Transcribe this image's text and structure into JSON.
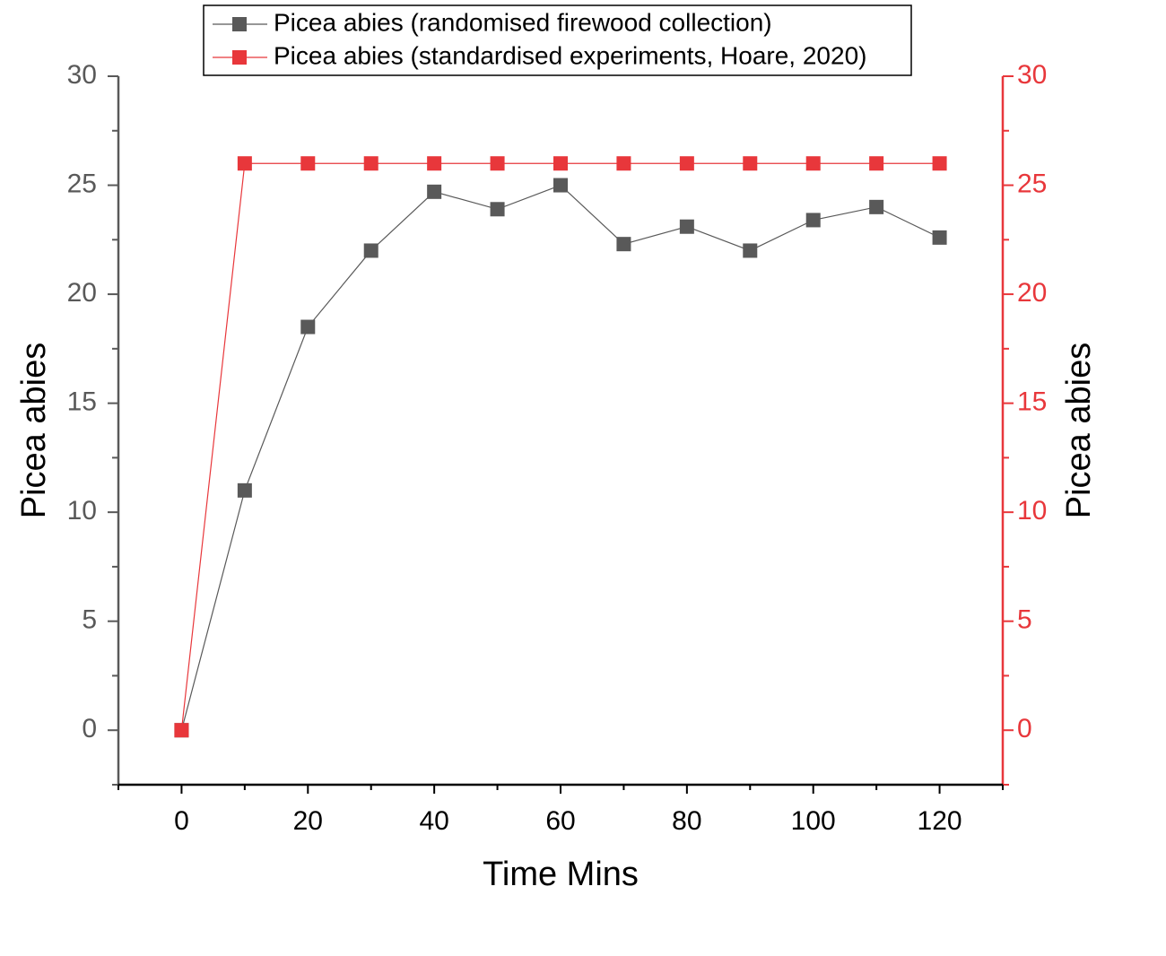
{
  "chart_data": {
    "type": "line",
    "x_label": "Time Mins",
    "y_label": "Picea abies",
    "y2_label": "Picea abies",
    "x": [
      0,
      10,
      20,
      30,
      40,
      50,
      60,
      70,
      80,
      90,
      100,
      110,
      120
    ],
    "series": [
      {
        "name": "Picea abies (randomised firewood collection)",
        "color": "#595959",
        "values": [
          0,
          11,
          18.5,
          22,
          24.7,
          23.9,
          25,
          22.3,
          23.1,
          22,
          23.4,
          24,
          22.6
        ]
      },
      {
        "name": "Picea abies (standardised experiments, Hoare, 2020)",
        "color": "#e8373b",
        "axis": "y2",
        "values": [
          0,
          26,
          26,
          26,
          26,
          26,
          26,
          26,
          26,
          26,
          26,
          26,
          26
        ]
      }
    ],
    "xlim": [
      -10,
      130
    ],
    "xticks": [
      0,
      20,
      40,
      60,
      80,
      100,
      120
    ],
    "ylim": [
      -2.5,
      30
    ],
    "yticks": [
      0,
      5,
      10,
      15,
      20,
      25,
      30
    ],
    "y2lim": [
      -2.5,
      30
    ],
    "y2ticks": [
      0,
      5,
      10,
      15,
      20,
      25,
      30
    ],
    "legend": "top"
  }
}
